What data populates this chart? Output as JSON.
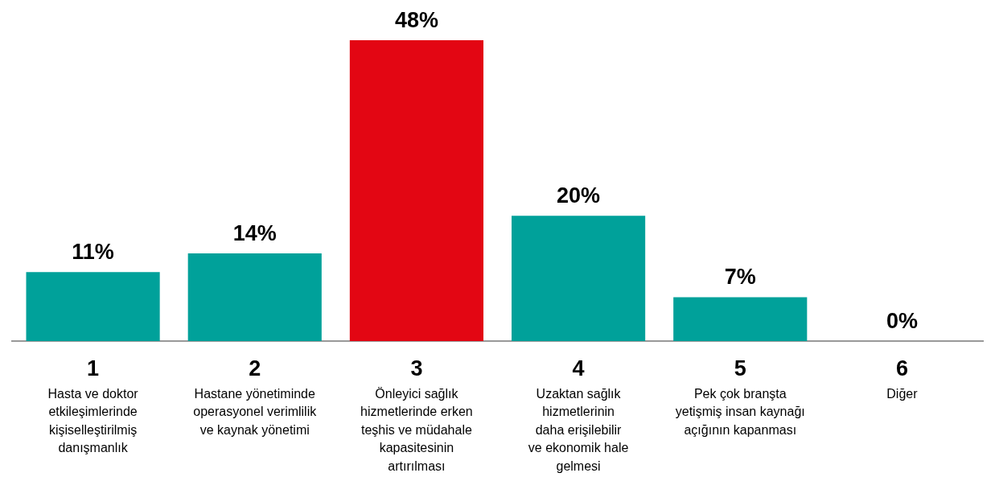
{
  "chart_data": {
    "type": "bar",
    "categories": [
      "1\nHasta ve doktor\netkileşimlerinde\nkişiselleştirilmiş\ndanışmanlık",
      "2\nHastane yönetiminde\noperasyonel verimlilik\nve kaynak yönetimi",
      "3\nÖnleyici sağlık\nhizmetlerinde erken\nteşhis ve müdahale\nkapasitesinin\nartırılması",
      "4\nUzaktan sağlık\nhizmetlerinin\ndaha erişilebilir\nve ekonomik hale\ngelmesi",
      "5\nPek çok branşta\nyetişmiş insan kaynağı\naçığının kapanması",
      "6\nDiğer"
    ],
    "values": [
      11,
      14,
      48,
      20,
      7,
      0
    ],
    "colors": [
      "#00a19a",
      "#00a19a",
      "#e30613",
      "#00a19a",
      "#00a19a",
      "#00a19a"
    ],
    "value_labels": [
      "11%",
      "14%",
      "48%",
      "20%",
      "7%",
      "0%"
    ],
    "grid": false,
    "legend": false
  }
}
